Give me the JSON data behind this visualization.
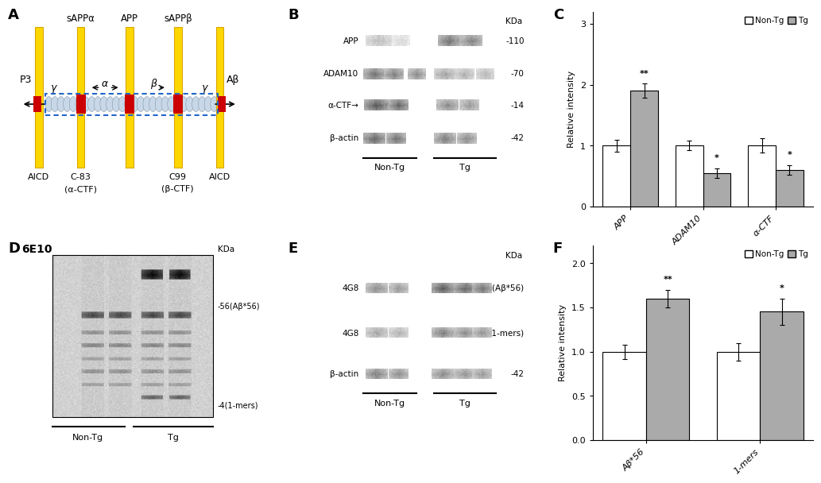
{
  "panel_C": {
    "categories": [
      "APP",
      "ADAM10",
      "α-CTF"
    ],
    "non_tg_vals": [
      1.0,
      1.0,
      1.0
    ],
    "tg_vals": [
      1.9,
      0.55,
      0.6
    ],
    "non_tg_err": [
      0.1,
      0.08,
      0.12
    ],
    "tg_err": [
      0.12,
      0.08,
      0.08
    ],
    "ylabel": "Relative intensity",
    "ylim": [
      0,
      3.2
    ],
    "yticks": [
      0,
      1,
      2,
      3
    ],
    "bar_color_nontg": "#ffffff",
    "bar_color_tg": "#aaaaaa",
    "edge_color": "#000000",
    "significance_tg": [
      "**",
      "*",
      "*"
    ]
  },
  "panel_F": {
    "categories": [
      "Aβ*56",
      "1-mers"
    ],
    "non_tg_vals": [
      1.0,
      1.0
    ],
    "tg_vals": [
      1.6,
      1.45
    ],
    "non_tg_err": [
      0.08,
      0.1
    ],
    "tg_err": [
      0.1,
      0.15
    ],
    "ylabel": "Relative intensity",
    "ylim": [
      0,
      2.2
    ],
    "yticks": [
      0,
      0.5,
      1.0,
      1.5,
      2.0
    ],
    "bar_color_nontg": "#ffffff",
    "bar_color_tg": "#aaaaaa",
    "edge_color": "#000000",
    "significance_tg": [
      "**",
      "*"
    ]
  },
  "background_color": "#ffffff",
  "panel_A": {
    "membrane_color": "#aaccff",
    "membrane_edge": "#4488ff",
    "yellow_bar_color": "#FFD700",
    "yellow_bar_edge": "#DAA500",
    "red_rect_color": "#cc0000",
    "membrane_fill": "#ccddff"
  }
}
